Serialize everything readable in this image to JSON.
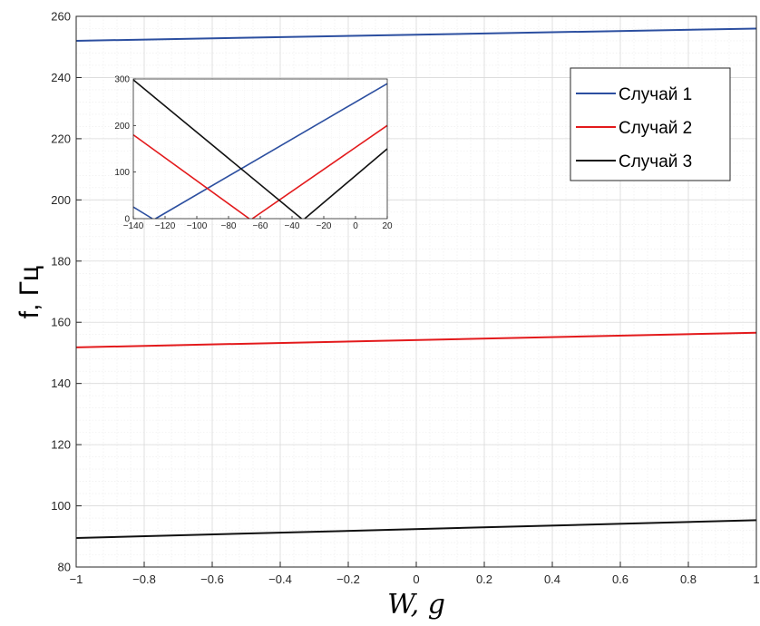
{
  "chart_data": [
    {
      "type": "line",
      "xlabel": "W, g",
      "ylabel": "f, Гц",
      "xlim": [
        -1,
        1
      ],
      "ylim": [
        80,
        260
      ],
      "x_ticks": [
        -1,
        -0.8,
        -0.6,
        -0.4,
        -0.2,
        0,
        0.2,
        0.4,
        0.6,
        0.8,
        1
      ],
      "x_tick_labels": [
        "−1",
        "−0.8",
        "−0.6",
        "−0.4",
        "−0.2",
        "0",
        "0.2",
        "0.4",
        "0.6",
        "0.8",
        "1"
      ],
      "y_ticks": [
        80,
        100,
        120,
        140,
        160,
        180,
        200,
        220,
        240,
        260
      ],
      "y_tick_labels": [
        "80",
        "100",
        "120",
        "140",
        "160",
        "180",
        "200",
        "220",
        "240",
        "260"
      ],
      "grid": "on (major and minor)",
      "legend_position": "top-right",
      "series": [
        {
          "name": "Случай 1",
          "color": "#2c4fa0",
          "x": [
            -1,
            1
          ],
          "y": [
            252.0,
            256.0
          ]
        },
        {
          "name": "Случай 2",
          "color": "#e31a1c",
          "x": [
            -1,
            1
          ],
          "y": [
            151.8,
            156.6
          ]
        },
        {
          "name": "Случай 3",
          "color": "#111111",
          "x": [
            -1,
            1
          ],
          "y": [
            89.5,
            95.3
          ]
        }
      ]
    },
    {
      "type": "line",
      "role": "inset",
      "xlim": [
        -140,
        20
      ],
      "ylim": [
        0,
        300
      ],
      "x_ticks": [
        -140,
        -120,
        -100,
        -80,
        -60,
        -40,
        -20,
        0,
        20
      ],
      "x_tick_labels": [
        "−140",
        "−120",
        "−100",
        "−80",
        "−60",
        "−40",
        "−20",
        "0",
        "20"
      ],
      "y_ticks": [
        0,
        100,
        200,
        300
      ],
      "y_tick_labels": [
        "0",
        "100",
        "200",
        "300"
      ],
      "grid": "on (minor)",
      "series": [
        {
          "color": "#2c4fa0",
          "segments": [
            [
              [
                -140,
                25
              ],
              [
                -128,
                0
              ]
            ],
            [
              [
                -126,
                0
              ],
              [
                20,
                290
              ]
            ]
          ]
        },
        {
          "color": "#e31a1c",
          "segments": [
            [
              [
                -140,
                180
              ],
              [
                -67,
                0
              ]
            ],
            [
              [
                -65,
                0
              ],
              [
                20,
                200
              ]
            ]
          ]
        },
        {
          "color": "#111111",
          "segments": [
            [
              [
                -140,
                298
              ],
              [
                -34,
                0
              ]
            ],
            [
              [
                -32,
                0
              ],
              [
                20,
                150
              ]
            ]
          ]
        }
      ]
    }
  ]
}
